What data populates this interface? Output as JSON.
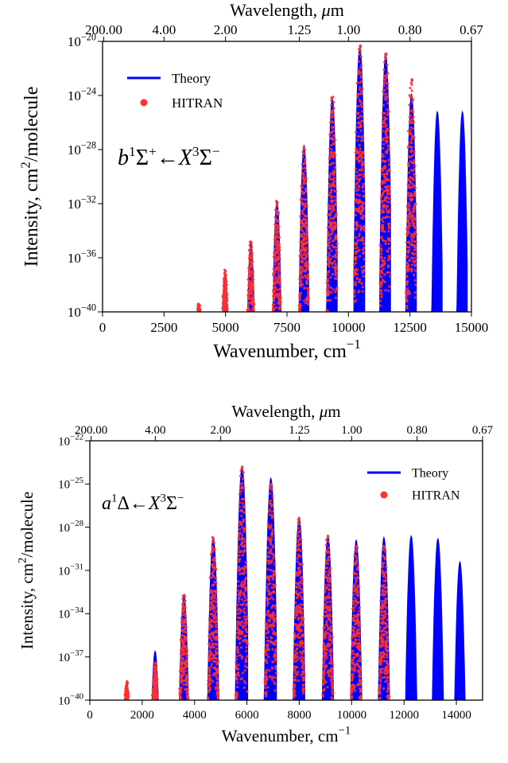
{
  "chart_data": [
    {
      "type": "line",
      "x_unit_label": "Wavenumber, cm",
      "x_unit_exponent": "−1",
      "ylabel_parts": [
        "Intensity, cm",
        "2",
        "/molecule"
      ],
      "top_axis_label_parts": [
        "Wavelength, ",
        "μ",
        "m"
      ],
      "xlim": [
        0,
        15000
      ],
      "y_scale": "log",
      "ylim_exponent": [
        -40,
        -20
      ],
      "x_ticks": [
        0,
        2500,
        5000,
        7500,
        10000,
        12500,
        15000
      ],
      "x_tick_labels": [
        "0",
        "2500",
        "5000",
        "7500",
        "10000",
        "12500",
        "15000"
      ],
      "y_tick_exponents": [
        "−40",
        "−36",
        "−32",
        "−28",
        "−24",
        "−20"
      ],
      "y_tick_values": [
        -40,
        -36,
        -32,
        -28,
        -24,
        -20
      ],
      "top_ticks": [
        {
          "wavenumber": 50,
          "label": "200.00"
        },
        {
          "wavenumber": 2500,
          "label": "4.00"
        },
        {
          "wavenumber": 5000,
          "label": "2.00"
        },
        {
          "wavenumber": 8000,
          "label": "1.25"
        },
        {
          "wavenumber": 10000,
          "label": "1.00"
        },
        {
          "wavenumber": 12500,
          "label": "0.80"
        },
        {
          "wavenumber": 15000,
          "label": "0.67"
        }
      ],
      "transition_label": "b¹Σ⁺←X³Σ⁻",
      "transition_parts": {
        "lower": "b",
        "sup1": "1",
        "sym1": "Σ",
        "sup1b": "+",
        "arrow": "←",
        "upper": "X",
        "sup2": "3",
        "sym2": "Σ",
        "sup2b": "−"
      },
      "legend_position": "top-left",
      "series": [
        {
          "name": "Theory",
          "color": "#0000ff",
          "style": "line",
          "bands": [
            {
              "center": 3900,
              "peak": -39.5
            },
            {
              "center": 4970,
              "peak": -37.0
            },
            {
              "center": 6020,
              "peak": -34.8
            },
            {
              "center": 7080,
              "peak": -31.8
            },
            {
              "center": 8180,
              "peak": -27.7
            },
            {
              "center": 9330,
              "peak": -24.2
            },
            {
              "center": 10450,
              "peak": -20.4
            },
            {
              "center": 11500,
              "peak": -21.0
            },
            {
              "center": 12550,
              "peak": -23.9
            },
            {
              "center": 13600,
              "peak": -25.2
            },
            {
              "center": 14620,
              "peak": -25.2
            }
          ]
        },
        {
          "name": "HITRAN",
          "color": "#ff3030",
          "style": "points",
          "bands": [
            {
              "center": 3900,
              "peak": -39.4
            },
            {
              "center": 4970,
              "peak": -36.9
            },
            {
              "center": 6020,
              "peak": -34.8
            },
            {
              "center": 7080,
              "peak": -31.8
            },
            {
              "center": 8180,
              "peak": -27.9
            },
            {
              "center": 9330,
              "peak": -24.1
            },
            {
              "center": 10450,
              "peak": -20.3
            },
            {
              "center": 11500,
              "peak": -20.9
            },
            {
              "center": 12550,
              "peak": -22.8
            }
          ]
        }
      ]
    },
    {
      "type": "line",
      "x_unit_label": "Wavenumber, cm",
      "x_unit_exponent": "−1",
      "ylabel_parts": [
        "Intensity, cm",
        "2",
        "/molecule"
      ],
      "top_axis_label_parts": [
        "Wavelength, ",
        "μ",
        "m"
      ],
      "xlim": [
        0,
        15000
      ],
      "y_scale": "log",
      "ylim_exponent": [
        -40,
        -22
      ],
      "x_ticks": [
        0,
        2000,
        4000,
        6000,
        8000,
        10000,
        12000,
        14000
      ],
      "x_tick_labels": [
        "0",
        "2000",
        "4000",
        "6000",
        "8000",
        "10000",
        "12000",
        "14000"
      ],
      "y_tick_exponents": [
        "−40",
        "−37",
        "−34",
        "−31",
        "−28",
        "−25",
        "−22"
      ],
      "y_tick_values": [
        -40,
        -37,
        -34,
        -31,
        -28,
        -25,
        -22
      ],
      "top_ticks": [
        {
          "wavenumber": 50,
          "label": "200.00"
        },
        {
          "wavenumber": 2500,
          "label": "4.00"
        },
        {
          "wavenumber": 5000,
          "label": "2.00"
        },
        {
          "wavenumber": 8000,
          "label": "1.25"
        },
        {
          "wavenumber": 10000,
          "label": "1.00"
        },
        {
          "wavenumber": 12500,
          "label": "0.80"
        },
        {
          "wavenumber": 15000,
          "label": "0.67"
        }
      ],
      "transition_label": "a¹Δ←X³Σ⁻",
      "transition_parts": {
        "lower": "a",
        "sup1": "1",
        "sym1": "Δ",
        "sup1b": "",
        "arrow": "←",
        "upper": "X",
        "sup2": "3",
        "sym2": "Σ",
        "sup2b": "−"
      },
      "legend_position": "top-right",
      "series": [
        {
          "name": "Theory",
          "color": "#0000ff",
          "style": "line",
          "bands": [
            {
              "center": 1400,
              "peak": -38.8
            },
            {
              "center": 2480,
              "peak": -36.6
            },
            {
              "center": 3580,
              "peak": -32.7
            },
            {
              "center": 4700,
              "peak": -28.7
            },
            {
              "center": 5800,
              "peak": -23.8
            },
            {
              "center": 6900,
              "peak": -24.6
            },
            {
              "center": 7980,
              "peak": -27.3
            },
            {
              "center": 9080,
              "peak": -28.6
            },
            {
              "center": 10160,
              "peak": -28.9
            },
            {
              "center": 11220,
              "peak": -28.7
            },
            {
              "center": 12260,
              "peak": -28.6
            },
            {
              "center": 13280,
              "peak": -28.8
            },
            {
              "center": 14120,
              "peak": -30.4
            }
          ]
        },
        {
          "name": "HITRAN",
          "color": "#ff3030",
          "style": "points",
          "bands": [
            {
              "center": 1400,
              "peak": -38.7
            },
            {
              "center": 2480,
              "peak": -37.4
            },
            {
              "center": 3580,
              "peak": -32.7
            },
            {
              "center": 4700,
              "peak": -28.7
            },
            {
              "center": 5800,
              "peak": -23.8
            },
            {
              "center": 6900,
              "peak": -25.0
            },
            {
              "center": 7980,
              "peak": -27.4
            },
            {
              "center": 9080,
              "peak": -28.6
            },
            {
              "center": 10160,
              "peak": -29.3
            },
            {
              "center": 11220,
              "peak": -29.3
            }
          ]
        }
      ]
    }
  ]
}
